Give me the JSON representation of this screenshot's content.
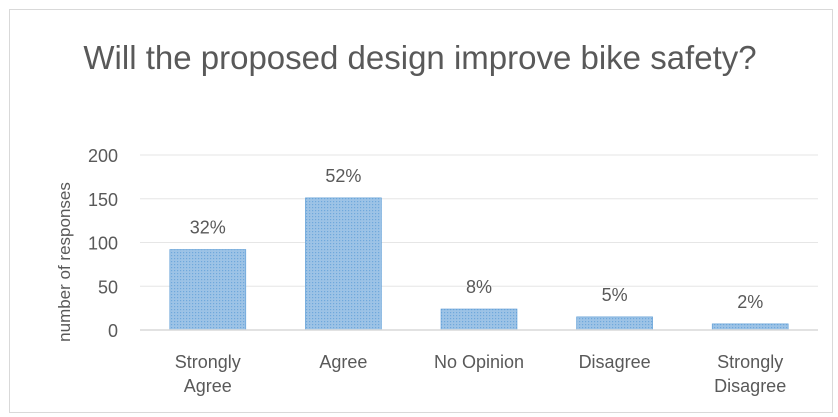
{
  "chart_data": {
    "type": "bar",
    "title": "Will the proposed design improve bike safety?",
    "ylabel": "number of responses",
    "xlabel": "",
    "categories": [
      [
        "Strongly",
        "Agree"
      ],
      [
        "Agree"
      ],
      [
        "No Opinion"
      ],
      [
        "Disagree"
      ],
      [
        "Strongly",
        "Disagree"
      ]
    ],
    "values": [
      92,
      151,
      24,
      15,
      7
    ],
    "data_labels": [
      "32%",
      "52%",
      "8%",
      "5%",
      "2%"
    ],
    "yticks": [
      "0",
      "50",
      "100",
      "150",
      "200"
    ],
    "ylim": [
      0,
      200
    ],
    "grid": true,
    "legend": "none",
    "bar_color": "#9dc3e6",
    "bar_border_color": "#5b9bd5"
  }
}
